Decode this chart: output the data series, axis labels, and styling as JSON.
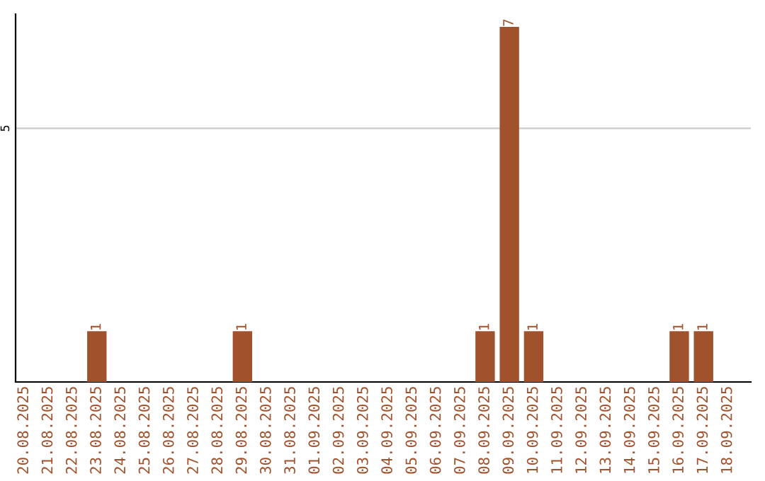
{
  "chart_data": {
    "type": "bar",
    "categories": [
      "20.08.2025",
      "21.08.2025",
      "22.08.2025",
      "23.08.2025",
      "24.08.2025",
      "25.08.2025",
      "26.08.2025",
      "27.08.2025",
      "28.08.2025",
      "29.08.2025",
      "30.08.2025",
      "31.08.2025",
      "01.09.2025",
      "02.09.2025",
      "03.09.2025",
      "04.09.2025",
      "05.09.2025",
      "06.09.2025",
      "07.09.2025",
      "08.09.2025",
      "09.09.2025",
      "10.09.2025",
      "11.09.2025",
      "12.09.2025",
      "13.09.2025",
      "14.09.2025",
      "15.09.2025",
      "16.09.2025",
      "17.09.2025",
      "18.09.2025"
    ],
    "values": [
      0,
      0,
      0,
      1,
      0,
      0,
      0,
      0,
      0,
      1,
      0,
      0,
      0,
      0,
      0,
      0,
      0,
      0,
      0,
      1,
      7,
      1,
      0,
      0,
      0,
      0,
      0,
      1,
      1,
      0
    ],
    "value_labels": [
      null,
      null,
      null,
      "1",
      null,
      null,
      null,
      null,
      null,
      "1",
      null,
      null,
      null,
      null,
      null,
      null,
      null,
      null,
      null,
      "1",
      "7",
      "1",
      null,
      null,
      null,
      null,
      null,
      "1",
      "1",
      null
    ],
    "color": "#a0522d",
    "ylim": [
      0,
      7.25
    ],
    "yticks": [
      5
    ],
    "grid": "y"
  }
}
